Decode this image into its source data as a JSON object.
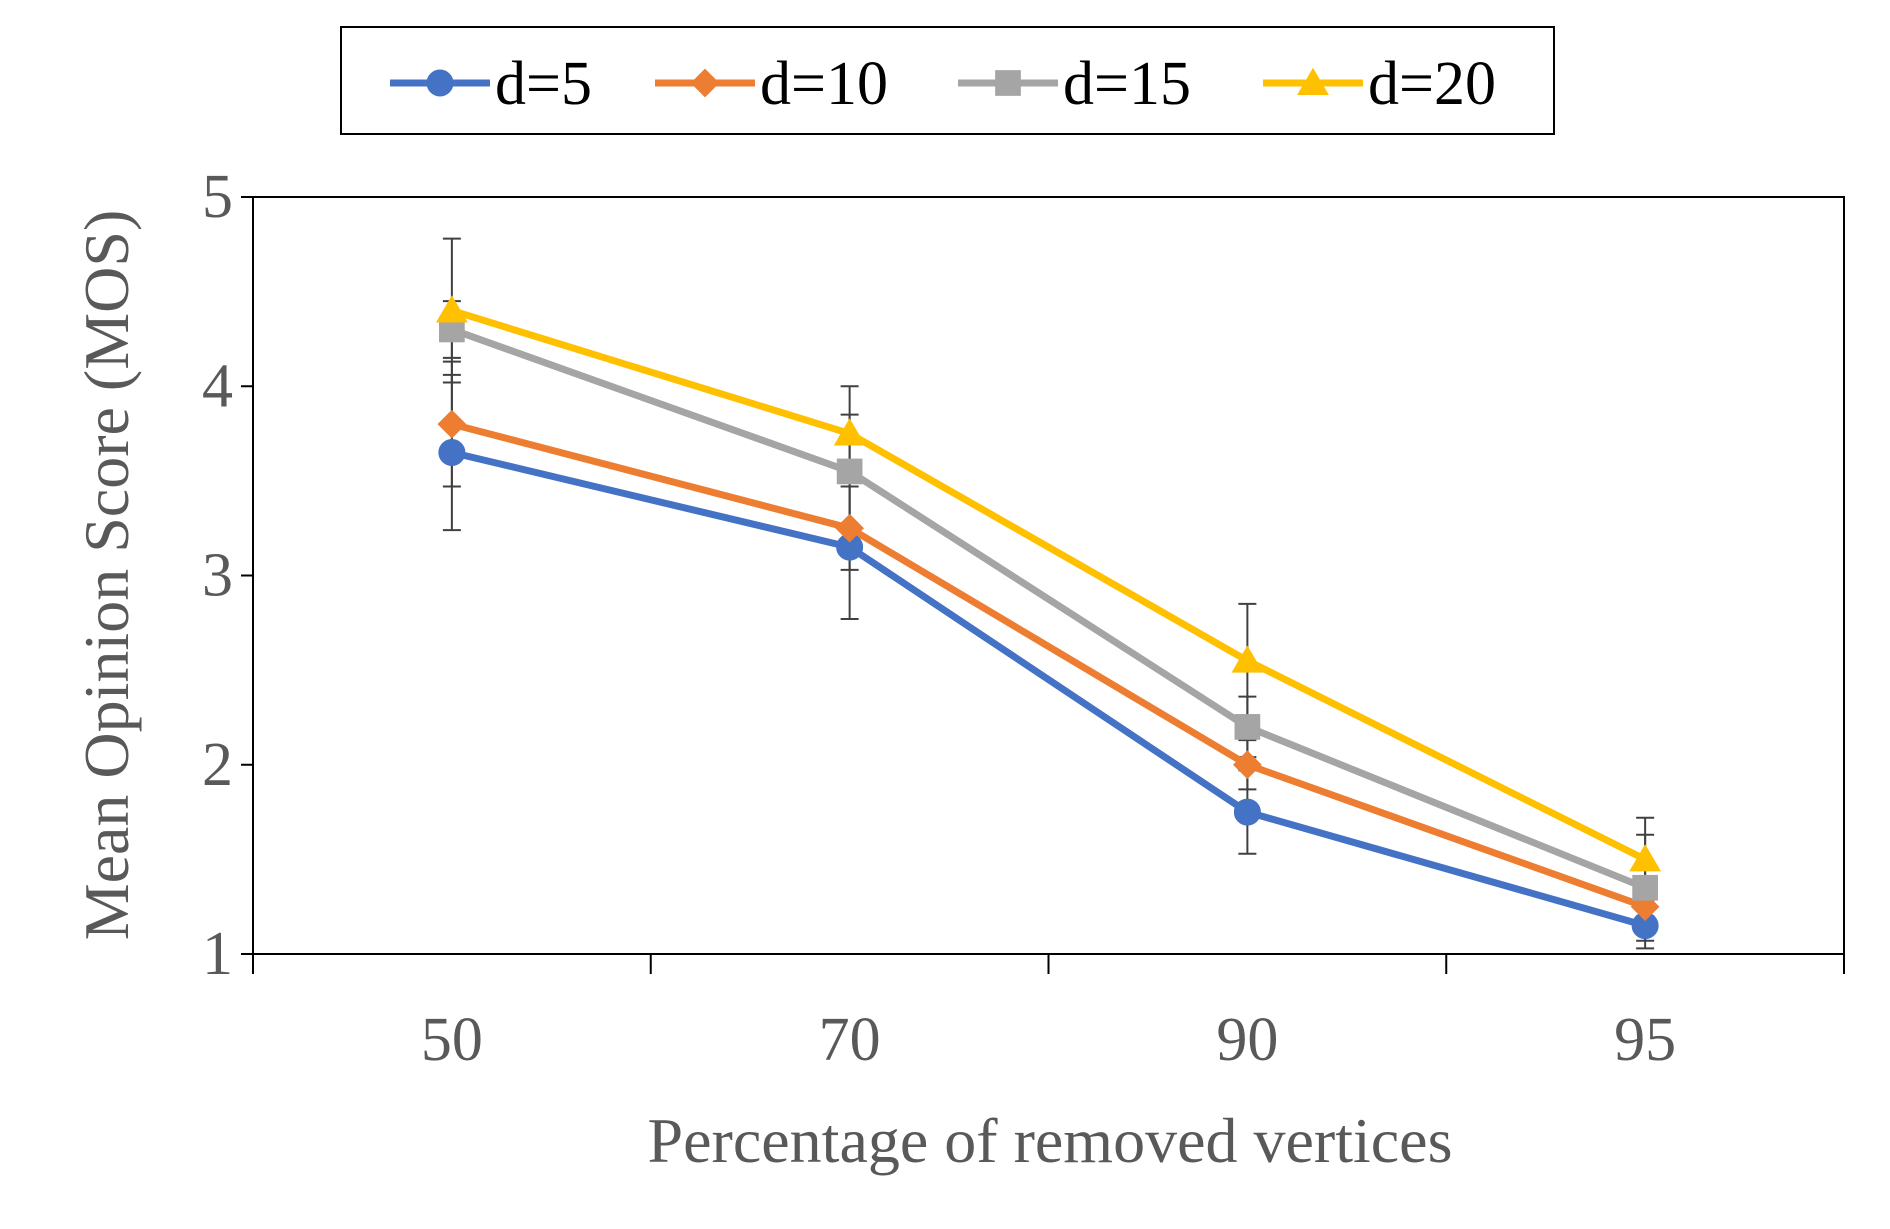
{
  "chart_data": {
    "type": "line",
    "title": "",
    "xlabel": "Percentage of removed vertices",
    "ylabel": "Mean Opinion Score (MOS)",
    "categories": [
      "50",
      "70",
      "90",
      "95"
    ],
    "yticks": [
      "1",
      "2",
      "3",
      "4",
      "5"
    ],
    "ylim": [
      1,
      5
    ],
    "legend_position": "top",
    "series": [
      {
        "name": "d=5",
        "color": "#4472C4",
        "marker": "circle",
        "values": [
          3.65,
          3.15,
          1.75,
          1.15
        ],
        "errors": [
          0.41,
          0.38,
          0.22,
          0.12
        ]
      },
      {
        "name": "d=10",
        "color": "#ED7D31",
        "marker": "diamond",
        "values": [
          3.8,
          3.25,
          2.0,
          1.25
        ],
        "errors": [
          0.33,
          0.22,
          0.13,
          0.05
        ]
      },
      {
        "name": "d=15",
        "color": "#A5A5A5",
        "marker": "square",
        "values": [
          4.3,
          3.55,
          2.2,
          1.35
        ],
        "errors": [
          0.15,
          0.3,
          0.16,
          0.28
        ]
      },
      {
        "name": "d=20",
        "color": "#FFC000",
        "marker": "triangle",
        "values": [
          4.4,
          3.75,
          2.55,
          1.5
        ],
        "errors": [
          0.38,
          0.25,
          0.3,
          0.22
        ]
      }
    ]
  }
}
